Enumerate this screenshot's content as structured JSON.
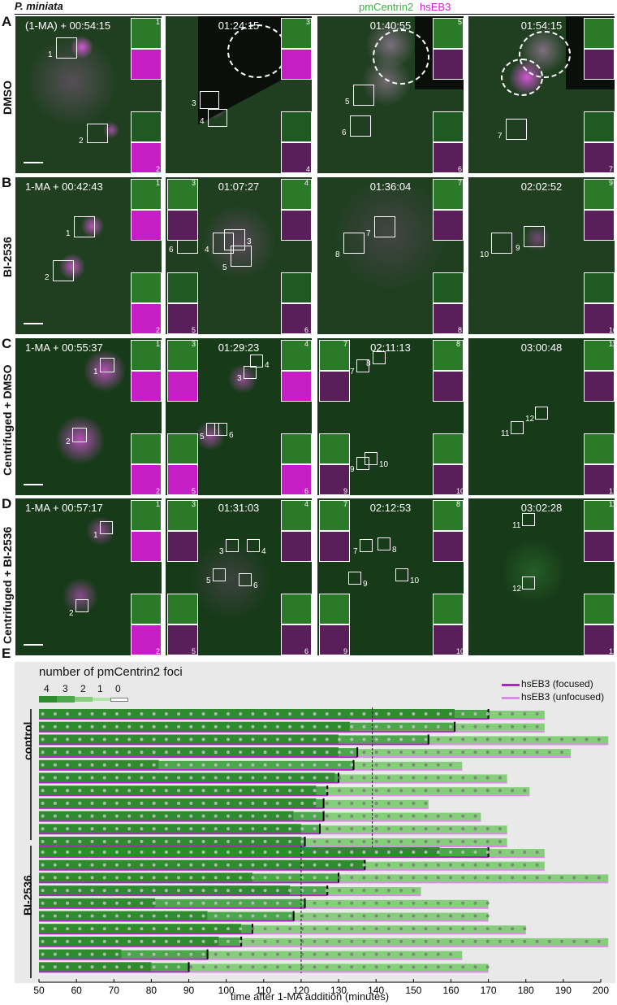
{
  "header": {
    "species": "P. miniata",
    "channel_green": "pmCentrin2",
    "channel_magenta": "hsEB3",
    "color_green": "#3cb043",
    "color_magenta": "#d21fd2"
  },
  "panels": [
    {
      "letter": "A",
      "row_label": "DMSO",
      "times": [
        "(1-MA) + 00:54:15",
        "01:24:15",
        "01:40:55",
        "01:54:15"
      ]
    },
    {
      "letter": "B",
      "row_label": "BI-2536",
      "times": [
        "1-MA + 00:42:43",
        "01:07:27",
        "01:36:04",
        "02:02:52"
      ]
    },
    {
      "letter": "C",
      "row_label": "Centrifuged + DMSO",
      "times": [
        "1-MA + 00:55:37",
        "01:29:23",
        "02:11:13",
        "03:00:48"
      ]
    },
    {
      "letter": "D",
      "row_label": "Centrifuged + BI-2536",
      "times": [
        "1-MA + 00:57:17",
        "01:31:03",
        "02:12:53",
        "03:02:28"
      ]
    }
  ],
  "panel_e": {
    "letter": "E",
    "legend_title": "number of pmCentrin2 foci",
    "foci_levels": [
      "4",
      "3",
      "2",
      "1",
      "0"
    ],
    "legend_focused": "hsEB3 (focused)",
    "legend_unfocused": "hsEB3 (unfocused)",
    "group_control": "control",
    "group_bi": "BI-2536",
    "xlabel": "time after 1-MA addition (minutes)",
    "xticks": [
      "50",
      "60",
      "70",
      "80",
      "90",
      "100",
      "110",
      "120",
      "130",
      "140",
      "150",
      "160",
      "170",
      "180",
      "190",
      "200"
    ]
  },
  "chart_data": {
    "type": "bar",
    "xlabel": "time after 1-MA addition (minutes)",
    "xlim": [
      50,
      202
    ],
    "colors": {
      "foci4": "#2e8b2e",
      "foci3": "#4aa84a",
      "foci2": "#86cf7a",
      "foci1": "#b6e3a8",
      "focused": "#b024c8",
      "unfocused": "#d98ae6"
    },
    "dashed_lines": {
      "control": 139,
      "BI-2536": 120
    },
    "control_rows": [
      {
        "end": 185,
        "dark_end": 161,
        "mid_end": 170,
        "mark": 170
      },
      {
        "end": 185,
        "dark_end": 133,
        "mid_end": 161,
        "mark": 161
      },
      {
        "end": 202,
        "dark_end": 130,
        "mid_end": 154,
        "mark": 154
      },
      {
        "end": 192,
        "dark_end": 130,
        "mid_end": 135,
        "mark": 135
      },
      {
        "end": 163,
        "dark_end": 82,
        "mid_end": 134,
        "mark": 134
      },
      {
        "end": 175,
        "dark_end": 129,
        "mid_end": 130,
        "mark": 130
      },
      {
        "end": 181,
        "dark_end": 124,
        "mid_end": 127,
        "mark": 127
      },
      {
        "end": 154,
        "dark_end": 124,
        "mid_end": 126,
        "mark": 126
      },
      {
        "end": 168,
        "dark_end": 118,
        "mid_end": 126,
        "mark": 126
      },
      {
        "end": 175,
        "dark_end": 120,
        "mid_end": 125,
        "mark": 125
      },
      {
        "end": 175,
        "dark_end": 120,
        "mid_end": 121,
        "mark": 121
      }
    ],
    "bi_rows": [
      {
        "end": 185,
        "dark_end": 157,
        "mid_end": 170,
        "mark": 170
      },
      {
        "end": 185,
        "dark_end": 137,
        "mid_end": 137,
        "mark": 137
      },
      {
        "end": 202,
        "dark_end": 107,
        "mid_end": 130,
        "mark": 130
      },
      {
        "end": 152,
        "dark_end": 117,
        "mid_end": 127,
        "mark": 127
      },
      {
        "end": 170,
        "dark_end": 81,
        "mid_end": 121,
        "mark": 121
      },
      {
        "end": 170,
        "dark_end": 95,
        "mid_end": 118,
        "mark": 118
      },
      {
        "end": 180,
        "dark_end": 104,
        "mid_end": 107,
        "mark": 107
      },
      {
        "end": 202,
        "dark_end": 98,
        "mid_end": 104,
        "mark": 104
      },
      {
        "end": 163,
        "dark_end": 72,
        "mid_end": 95,
        "mark": 95
      },
      {
        "end": 170,
        "dark_end": 80,
        "mid_end": 90,
        "mark": 90
      }
    ]
  }
}
